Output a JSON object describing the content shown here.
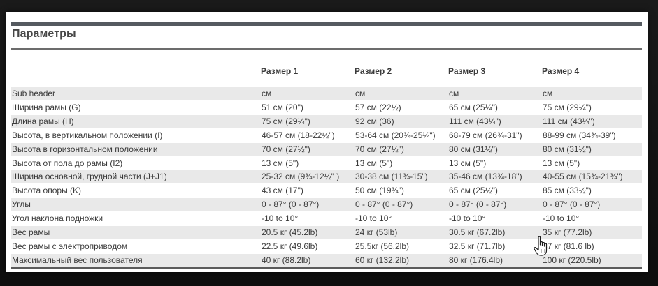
{
  "title": "Параметры",
  "columns": [
    "",
    "Размер 1",
    "Размер 2",
    "Размер 3",
    "Размер 4"
  ],
  "rows": [
    [
      "Sub header",
      "см",
      "см",
      "см",
      "см"
    ],
    [
      "Ширина рамы (G)",
      "51 см (20\")",
      "57 см (22½)",
      "65 см (25¼\")",
      "75 см (29¼\")"
    ],
    [
      "Длина рамы (H)",
      "75 см (29¼\")",
      "92 см (36)",
      "111 см (43¼\")",
      "111 см (43¼\")"
    ],
    [
      "Высота, в вертикальном положении (I)",
      "46-57 см (18-22½\")",
      "53-64 см (20¾-25¼\")",
      "68-79 см (26¾-31\")",
      "88-99 см (34¾-39\")"
    ],
    [
      "Высота в горизонтальном положении",
      "70 см (27½\")",
      "70 см (27½\")",
      "80 см (31½\")",
      "80 см (31½\")"
    ],
    [
      "Высота от пола до рамы (I2)",
      "13 см (5\")",
      "13 см (5\")",
      "13 см (5\")",
      "13 см (5\")"
    ],
    [
      "Ширина основной, грудной части (J+J1)",
      "25-32 см (9¾-12½\" )",
      "30-38 см (11¾-15\")",
      "35-46 см (13¾-18\")",
      "40-55 см (15¾-21¾\")"
    ],
    [
      "Высота опоры (K)",
      "43 см (17\")",
      "50 см (19¾\")",
      "65 см (25½\")",
      "85 см (33½\")"
    ],
    [
      "Углы",
      "0 - 87° (0 - 87°)",
      "0 - 87° (0 - 87°)",
      "0 - 87° (0 - 87°)",
      "0 - 87° (0 - 87°)"
    ],
    [
      "Угол наклона подножки",
      "-10 to 10°",
      "-10 to 10°",
      "-10 to 10°",
      "-10 to 10°"
    ],
    [
      "Вес рамы",
      "20.5 кг (45.2lb)",
      "24 кг (53lb)",
      "30.5 кг (67.2lb)",
      "35 кг (77.2lb)"
    ],
    [
      "Вес рамы с электроприводом",
      "22.5 кг (49.6lb)",
      "25.5кг (56.2lb)",
      "32.5 кг (71.7lb)",
      "37 кг (81.6 lb)"
    ],
    [
      "Максимальный вес пользователя",
      "40 кг (88.2lb)",
      "60 кг (132.2lb)",
      "80 кг (176.4lb)",
      "100 кг (220.5lb)"
    ]
  ],
  "colors": {
    "background": "#121212",
    "card": "#ffffff",
    "top_bar": "#555a60",
    "row_shade": "#e9e9e9",
    "text": "#3a3a3a"
  },
  "cursor": "hand-pointer-icon"
}
